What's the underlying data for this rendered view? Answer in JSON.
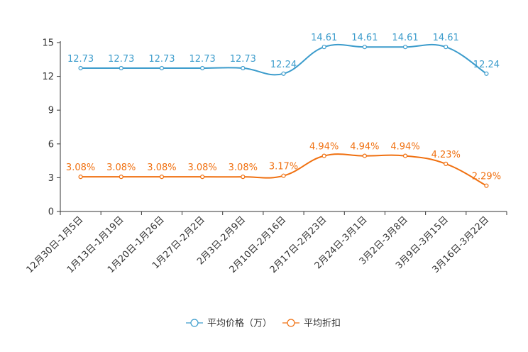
{
  "chart_data": {
    "type": "line",
    "categories": [
      "12月30日-1月5日",
      "1月13日-1月19日",
      "1月20日-1月26日",
      "1月27日-2月2日",
      "2月3日-2月9日",
      "2月10日-2月16日",
      "2月17日-2月23日",
      "2月24日-3月1日",
      "3月2日-3月8日",
      "3月9日-3月15日",
      "3月16日-3月22日"
    ],
    "y_ticks": [
      0,
      3,
      6,
      9,
      12,
      15
    ],
    "ylim": [
      0,
      15
    ],
    "series": [
      {
        "name": "平均价格（万）",
        "color": "#3c9ccc",
        "values": [
          12.73,
          12.73,
          12.73,
          12.73,
          12.73,
          12.24,
          14.61,
          14.61,
          14.61,
          14.61,
          12.24
        ],
        "labels": [
          "12.73",
          "12.73",
          "12.73",
          "12.73",
          "12.73",
          "12.24",
          "14.61",
          "14.61",
          "14.61",
          "14.61",
          "12.24"
        ]
      },
      {
        "name": "平均折扣",
        "color": "#f07010",
        "values": [
          3.08,
          3.08,
          3.08,
          3.08,
          3.08,
          3.17,
          4.94,
          4.94,
          4.94,
          4.23,
          2.29
        ],
        "labels": [
          "3.08%",
          "3.08%",
          "3.08%",
          "3.08%",
          "3.08%",
          "3.17%",
          "4.94%",
          "4.94%",
          "4.94%",
          "4.23%",
          "2.29%"
        ]
      }
    ],
    "legend_position": "bottom-center"
  }
}
